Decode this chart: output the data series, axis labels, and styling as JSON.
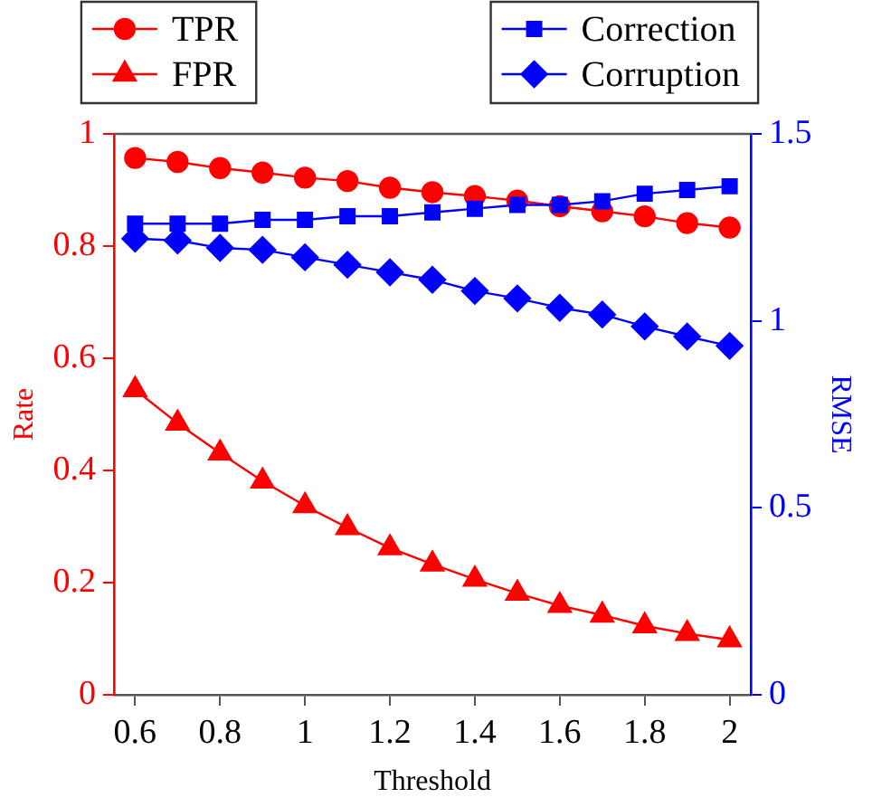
{
  "chart_data": {
    "type": "line",
    "xlabel": "Threshold",
    "ylabel": "Rate",
    "y2label": "RMSE",
    "x": [
      0.6,
      0.7,
      0.8,
      0.9,
      1.0,
      1.1,
      1.2,
      1.3,
      1.4,
      1.5,
      1.6,
      1.7,
      1.8,
      1.9,
      2.0
    ],
    "series": [
      {
        "name": "TPR",
        "color": "#ff0000",
        "marker": "circle",
        "values": [
          0.957,
          0.95,
          0.939,
          0.931,
          0.922,
          0.916,
          0.904,
          0.896,
          0.889,
          0.881,
          0.871,
          0.862,
          0.853,
          0.841,
          0.833
        ]
      },
      {
        "name": "FPR",
        "color": "#ff0000",
        "marker": "triangle",
        "values": [
          0.544,
          0.484,
          0.431,
          0.381,
          0.337,
          0.298,
          0.262,
          0.233,
          0.206,
          0.181,
          0.159,
          0.142,
          0.123,
          0.109,
          0.098
        ]
      },
      {
        "name": "Correction",
        "color": "#0000ff",
        "marker": "square",
        "axis": "y2",
        "values": [
          1.26,
          1.26,
          1.26,
          1.27,
          1.27,
          1.28,
          1.28,
          1.29,
          1.3,
          1.31,
          1.31,
          1.32,
          1.34,
          1.35,
          1.36
        ]
      },
      {
        "name": "Corruption",
        "color": "#0000ff",
        "marker": "diamond",
        "axis": "y2",
        "values": [
          1.22,
          1.215,
          1.195,
          1.19,
          1.17,
          1.15,
          1.13,
          1.11,
          1.08,
          1.06,
          1.035,
          1.017,
          0.985,
          0.958,
          0.933
        ]
      }
    ],
    "xlim": [
      0.55,
      2.05
    ],
    "xticks": [
      0.6,
      0.8,
      1,
      1.2,
      1.4,
      1.6,
      1.8,
      2
    ],
    "ylim": [
      0,
      1
    ],
    "yticks": [
      0,
      0.2,
      0.4,
      0.6,
      0.8,
      1
    ],
    "y2lim": [
      0,
      1.5
    ],
    "y2ticks": [
      0,
      0.5,
      1,
      1.5
    ],
    "grid": false,
    "legend": "top",
    "line_style": "solid"
  }
}
